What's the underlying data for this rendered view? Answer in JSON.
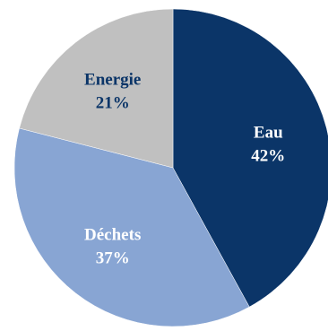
{
  "chart_data": {
    "type": "pie",
    "title": "",
    "slices": [
      {
        "label": "Eau",
        "value": 42,
        "value_label": "42%",
        "color": "#0b3568",
        "text_color": "#ffffff"
      },
      {
        "label": "Déchets",
        "value": 37,
        "value_label": "37%",
        "color": "#88a5d3",
        "text_color": "#ffffff"
      },
      {
        "label": "Energie",
        "value": 21,
        "value_label": "21%",
        "color": "#c0c0c0",
        "text_color": "#0b3568"
      }
    ],
    "start_angle": "12 o'clock",
    "direction": "clockwise",
    "legend": "none"
  }
}
